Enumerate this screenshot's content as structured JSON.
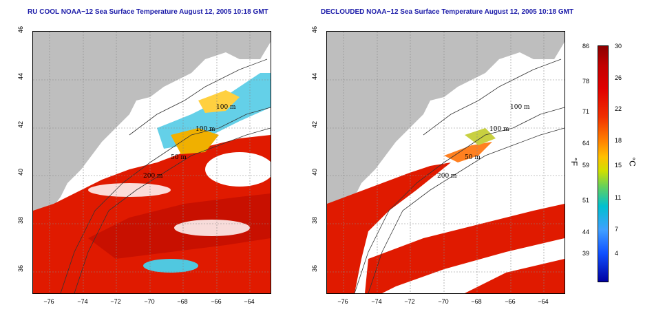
{
  "panels": [
    {
      "title": "RU COOL NOAA−12 Sea Surface Temperature August 12, 2005 10:18 GMT"
    },
    {
      "title": "DECLOUDED NOAA−12 Sea Surface Temperature August 12, 2005 10:18 GMT"
    }
  ],
  "axes": {
    "lon_ticks": [
      "−76",
      "−74",
      "−72",
      "−70",
      "−68",
      "−66",
      "−64"
    ],
    "lat_ticks": [
      "36",
      "38",
      "40",
      "42",
      "44",
      "46"
    ]
  },
  "contour_labels": [
    "100 m",
    "100 m",
    "50 m",
    "200 m",
    "50 m",
    "200 m"
  ],
  "colorbar": {
    "fahrenheit_ticks": [
      "86",
      "78",
      "71",
      "64",
      "59",
      "51",
      "44",
      "39"
    ],
    "celsius_ticks": [
      "30",
      "26",
      "22",
      "18",
      "15",
      "11",
      "7",
      "4"
    ],
    "fahrenheit_unit": "°F",
    "celsius_unit": "°C"
  },
  "colors": {
    "title": "#1a1aa8",
    "land": "#bebebe",
    "cloud": "#ffffff",
    "warm": "#e01a00",
    "cool": "#30c0e0"
  }
}
